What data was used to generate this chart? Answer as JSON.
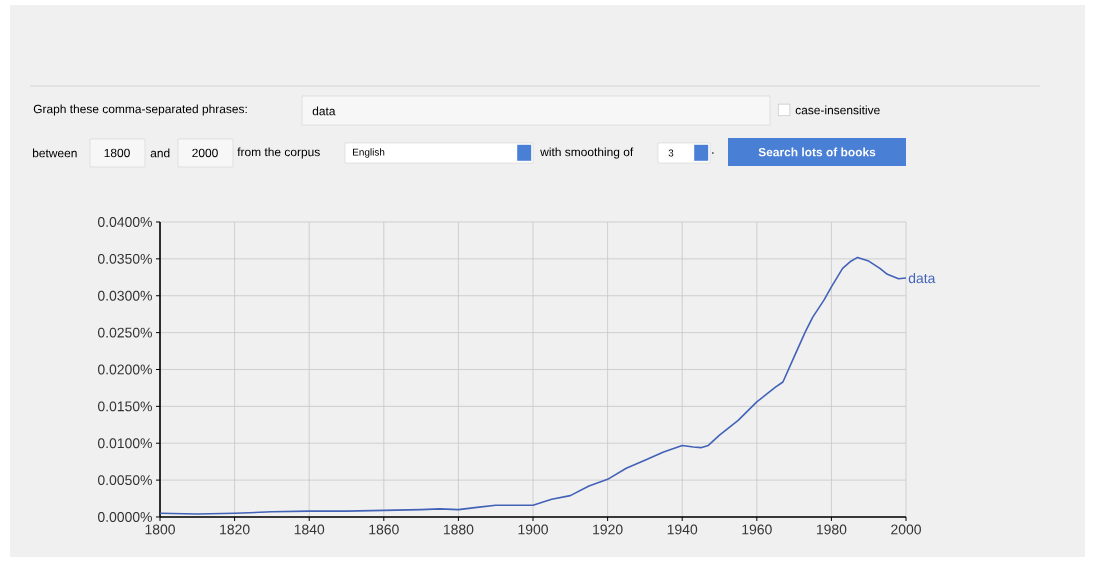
{
  "chart_data": {
    "type": "line",
    "x": [
      1800,
      1810,
      1820,
      1830,
      1840,
      1850,
      1860,
      1870,
      1875,
      1880,
      1885,
      1890,
      1895,
      1900,
      1905,
      1910,
      1915,
      1920,
      1925,
      1930,
      1935,
      1940,
      1943,
      1945,
      1947,
      1950,
      1955,
      1960,
      1965,
      1967,
      1970,
      1973,
      1975,
      1978,
      1980,
      1983,
      1985,
      1987,
      1990,
      1993,
      1995,
      1998,
      2000
    ],
    "series": [
      {
        "name": "data",
        "color": "#4262b8",
        "values": [
          0.0005,
          0.0004,
          0.0005,
          0.0007,
          0.0008,
          0.0008,
          0.0009,
          0.001,
          0.0011,
          0.001,
          0.0013,
          0.0016,
          0.0016,
          0.0016,
          0.0024,
          0.0029,
          0.0042,
          0.0051,
          0.0066,
          0.0077,
          0.0088,
          0.0097,
          0.0095,
          0.0094,
          0.0097,
          0.0111,
          0.0131,
          0.0156,
          0.0176,
          0.0183,
          0.0217,
          0.0251,
          0.0271,
          0.0294,
          0.0312,
          0.0337,
          0.0346,
          0.0352,
          0.0347,
          0.0337,
          0.0329,
          0.0323,
          0.0324
        ]
      }
    ],
    "xlim": [
      1800,
      2000
    ],
    "xticks": [
      1800,
      1820,
      1840,
      1860,
      1880,
      1900,
      1920,
      1940,
      1960,
      1980,
      2000
    ],
    "ylim": [
      0,
      0.04
    ],
    "yticks": [
      {
        "value": 0,
        "label": "0.0000%"
      },
      {
        "value": 0.005,
        "label": "0.0050%"
      },
      {
        "value": 0.01,
        "label": "0.0100%"
      },
      {
        "value": 0.015,
        "label": "0.0150%"
      },
      {
        "value": 0.02,
        "label": "0.0200%"
      },
      {
        "value": 0.025,
        "label": "0.0250%"
      },
      {
        "value": 0.03,
        "label": "0.0300%"
      },
      {
        "value": 0.035,
        "label": "0.0350%"
      },
      {
        "value": 0.04,
        "label": "0.0400%"
      }
    ],
    "grid": true,
    "annotations": [
      "Graph these comma-separated phrases:",
      "data",
      "case-insensitive",
      "between",
      "1800",
      "and",
      "2000",
      "from the corpus",
      "English",
      "with smoothing of",
      "3",
      ".",
      "Search lots of books"
    ]
  }
}
